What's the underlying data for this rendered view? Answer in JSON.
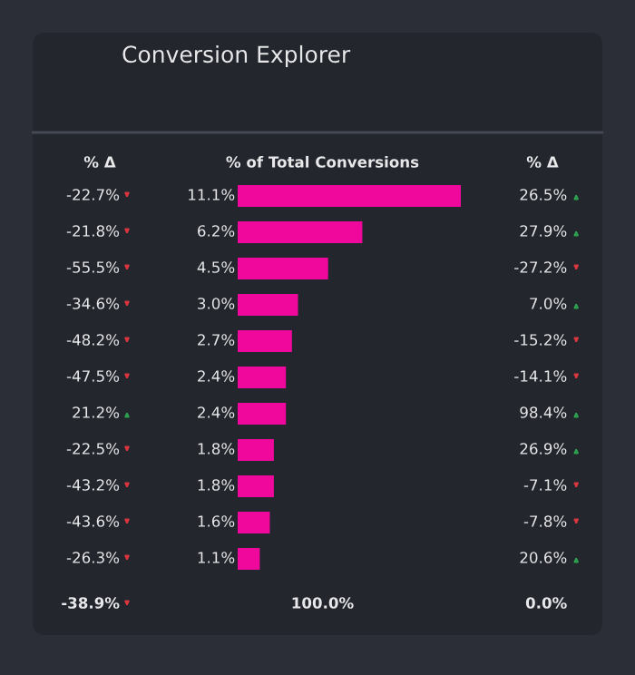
{
  "chart_data": [
    {
      "type": "other",
      "title": "Conversion Explorer"
    },
    {
      "type": "other",
      "title": "% Δ",
      "annotations": [
        "-22.7%",
        "-21.8%",
        "-55.5%",
        "-34.6%",
        "-48.2%",
        "-47.5%",
        "21.2%",
        "-22.5%",
        "-43.2%",
        "-43.6%",
        "-26.3%",
        "-38.9%"
      ],
      "colors": [
        "#d9363e",
        "#d9363e",
        "#d9363e",
        "#d9363e",
        "#d9363e",
        "#d9363e",
        "#2e9e4f",
        "#d9363e",
        "#d9363e",
        "#d9363e",
        "#d9363e",
        "#d9363e"
      ]
    },
    {
      "type": "bar",
      "orientation": "horizontal",
      "title": "% of Total Conversions",
      "categories": [
        null,
        null,
        null,
        null,
        null,
        null,
        null,
        null,
        null,
        null,
        null
      ],
      "values": [
        11.1,
        6.2,
        4.5,
        3.0,
        2.7,
        2.4,
        2.4,
        1.8,
        1.8,
        1.6,
        1.1
      ],
      "value_labels": [
        "11.1%",
        "6.2%",
        "4.5%",
        "3.0%",
        "2.7%",
        "2.4%",
        "2.4%",
        "1.8%",
        "1.8%",
        "1.6%",
        "1.1%"
      ],
      "color": "#f0089c",
      "annotations": [
        "100.0%"
      ]
    },
    {
      "type": "other",
      "title": "% Δ",
      "annotations": [
        "26.5%",
        "27.9%",
        "-27.2%",
        "7.0%",
        "-15.2%",
        "-14.1%",
        "98.4%",
        "26.9%",
        "-7.1%",
        "-7.8%",
        "20.6%",
        "0.0%"
      ],
      "colors": [
        "#2e9e4f",
        "#2e9e4f",
        "#d9363e",
        "#2e9e4f",
        "#d9363e",
        "#d9363e",
        "#2e9e4f",
        "#2e9e4f",
        "#d9363e",
        "#d9363e",
        "#2e9e4f",
        null
      ]
    }
  ]
}
